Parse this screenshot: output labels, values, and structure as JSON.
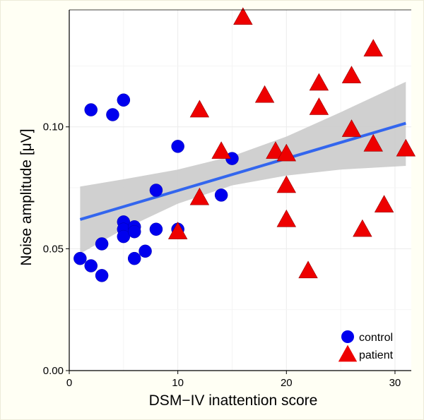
{
  "chart_data": {
    "type": "scatter",
    "xlabel": "DSM−IV inattention score",
    "ylabel": "Noise amplitude [μV]",
    "xlim": [
      0,
      31.5
    ],
    "ylim": [
      0,
      0.148
    ],
    "x_ticks": [
      {
        "value": 0,
        "label": "0"
      },
      {
        "value": 10,
        "label": "10"
      },
      {
        "value": 20,
        "label": "20"
      },
      {
        "value": 30,
        "label": "30"
      }
    ],
    "y_ticks": [
      {
        "value": 0,
        "label": "0.00"
      },
      {
        "value": 0.05,
        "label": "0.05"
      },
      {
        "value": 0.1,
        "label": "0.10"
      }
    ],
    "grid": true,
    "legend_position": "bottom-right",
    "series": [
      {
        "name": "control",
        "marker": "circle",
        "color": "#0000ee",
        "points": [
          [
            1,
            0.046
          ],
          [
            2,
            0.043
          ],
          [
            2,
            0.107
          ],
          [
            3,
            0.039
          ],
          [
            3,
            0.052
          ],
          [
            4,
            0.105
          ],
          [
            5,
            0.111
          ],
          [
            5,
            0.061
          ],
          [
            5,
            0.058
          ],
          [
            5,
            0.055
          ],
          [
            6,
            0.059
          ],
          [
            6,
            0.057
          ],
          [
            6,
            0.046
          ],
          [
            7,
            0.049
          ],
          [
            8,
            0.074
          ],
          [
            8,
            0.058
          ],
          [
            10,
            0.092
          ],
          [
            10,
            0.058
          ],
          [
            14,
            0.072
          ],
          [
            15,
            0.087
          ]
        ]
      },
      {
        "name": "patient",
        "marker": "triangle",
        "color": "#ee0000",
        "points": [
          [
            10,
            0.057
          ],
          [
            12,
            0.107
          ],
          [
            12,
            0.071
          ],
          [
            14,
            0.09
          ],
          [
            16,
            0.145
          ],
          [
            18,
            0.113
          ],
          [
            19,
            0.09
          ],
          [
            20,
            0.089
          ],
          [
            20,
            0.076
          ],
          [
            20,
            0.062
          ],
          [
            22,
            0.041
          ],
          [
            23,
            0.118
          ],
          [
            23,
            0.108
          ],
          [
            26,
            0.121
          ],
          [
            26,
            0.099
          ],
          [
            27,
            0.058
          ],
          [
            28,
            0.132
          ],
          [
            28,
            0.093
          ],
          [
            29,
            0.068
          ],
          [
            31,
            0.091
          ]
        ]
      }
    ],
    "fit": {
      "type": "linear",
      "color": "#3366ee",
      "points": [
        [
          1,
          0.062
        ],
        [
          31,
          0.1015
        ]
      ],
      "ci_upper": [
        [
          1,
          0.0755
        ],
        [
          5,
          0.0785
        ],
        [
          10,
          0.0825
        ],
        [
          15,
          0.088
        ],
        [
          20,
          0.096
        ],
        [
          25,
          0.106
        ],
        [
          31,
          0.1185
        ]
      ],
      "ci_lower": [
        [
          1,
          0.048
        ],
        [
          5,
          0.058
        ],
        [
          10,
          0.0685
        ],
        [
          15,
          0.076
        ],
        [
          20,
          0.08
        ],
        [
          25,
          0.0825
        ],
        [
          31,
          0.084
        ]
      ],
      "band_color": "#c8c8c8"
    }
  }
}
